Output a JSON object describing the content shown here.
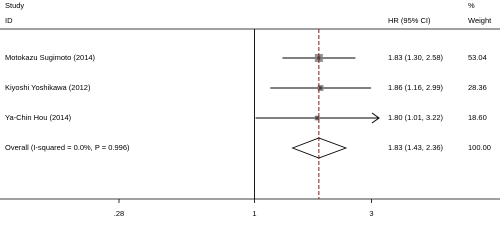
{
  "chart_data": {
    "type": "forest",
    "headers": {
      "study": "Study",
      "id": "ID",
      "effect": "HR (95% CI)",
      "percent": "%",
      "weight": "Weight"
    },
    "studies": [
      {
        "name": "Motokazu Sugimoto (2014)",
        "hr": 1.83,
        "lo": 1.3,
        "hi": 2.58,
        "value_label": "1.83 (1.30, 2.58)",
        "weight": 53.04,
        "weight_label": "53.04"
      },
      {
        "name": "Kiyoshi Yoshikawa (2012)",
        "hr": 1.86,
        "lo": 1.16,
        "hi": 2.99,
        "value_label": "1.86 (1.16, 2.99)",
        "weight": 28.36,
        "weight_label": "28.36"
      },
      {
        "name": "Ya-Chin Hou (2014)",
        "hr": 1.8,
        "lo": 1.01,
        "hi": 3.22,
        "value_label": "1.80 (1.01, 3.22)",
        "weight": 18.6,
        "weight_label": "18.60"
      }
    ],
    "overall": {
      "name": "Overall  (I-squared = 0.0%, P = 0.996)",
      "hr": 1.83,
      "lo": 1.43,
      "hi": 2.36,
      "value_label": "1.83 (1.43, 2.36)",
      "weight_label": "100.00"
    },
    "xscale": "log",
    "xlim": [
      0.28,
      3.57
    ],
    "xticks": [
      {
        "value": 0.28,
        "label": ".28"
      },
      1,
      3
    ],
    "box_color": "#808080",
    "overall_line_color": "#8b1a1a"
  }
}
